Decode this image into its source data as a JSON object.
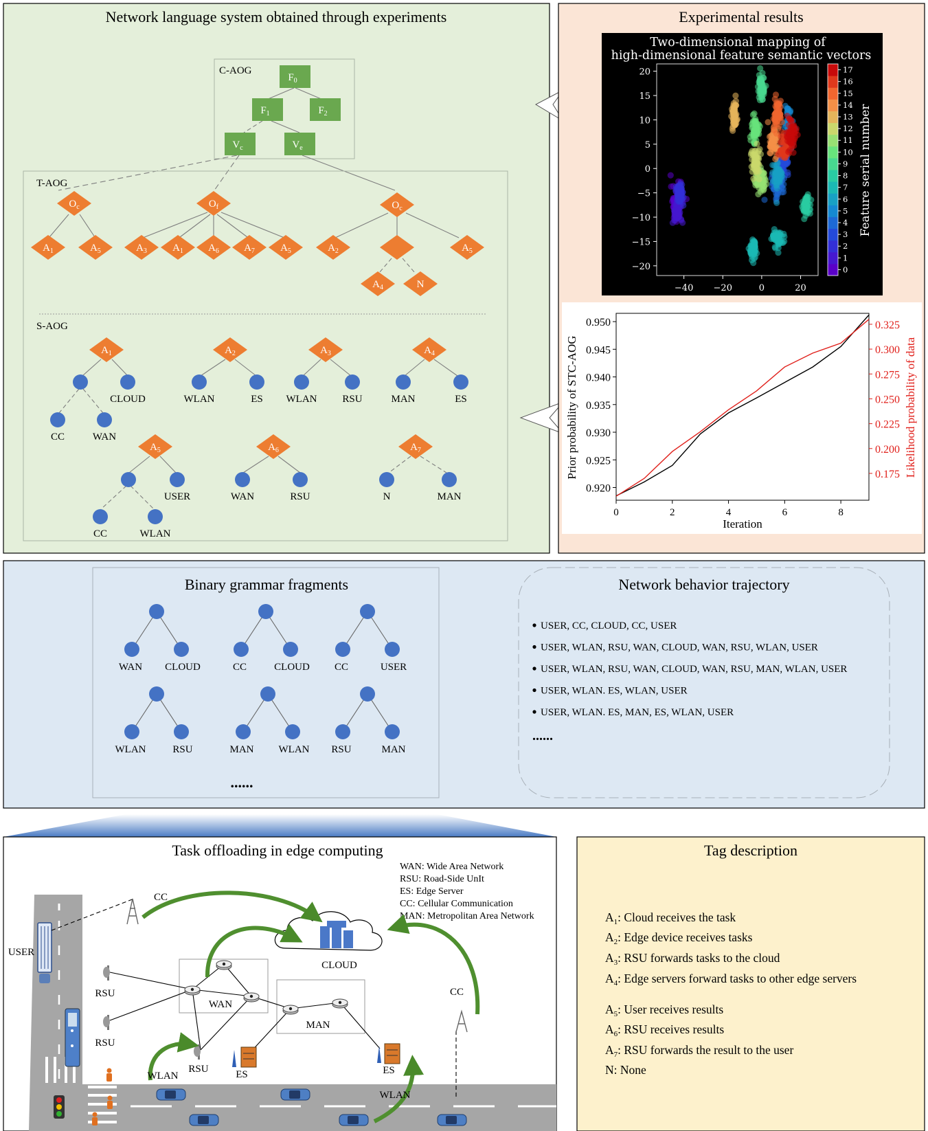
{
  "panels": {
    "network_language_title": "Network language system obtained through experiments",
    "experimental_title": "Experimental results",
    "binary_title": "Binary grammar fragments",
    "trajectory_title": "Network behavior trajectory",
    "task_title": "Task offloading in edge computing",
    "tag_title": "Tag description"
  },
  "aog": {
    "c_label": "C-AOG",
    "t_label": "T-AOG",
    "s_label": "S-AOG",
    "c_nodes": {
      "f0": "F",
      "f0_sub": "0",
      "f1": "F",
      "f1_sub": "1",
      "f2": "F",
      "f2_sub": "2",
      "vc": "V",
      "vc_sub": "c",
      "ve": "V",
      "ve_sub": "e"
    },
    "t_nodes": {
      "oc": "O",
      "oc_sub": "c",
      "of": "O",
      "of_sub": "f",
      "oe": "O",
      "oe_sub": "c"
    },
    "leaf_letter": "A",
    "none_letter": "N",
    "s_leaves": {
      "cloud": "CLOUD",
      "cc": "CC",
      "wan": "WAN",
      "wlan": "WLAN",
      "es": "ES",
      "rsu": "RSU",
      "man": "MAN",
      "user": "USER",
      "n": "N"
    }
  },
  "colors": {
    "green_panel": "#e4efda",
    "peach_panel": "#fbe5d6",
    "blue_panel": "#dde8f3",
    "yellow_panel": "#fdf1cc",
    "c_node": "#6aa84f",
    "t_node": "#ed7d31",
    "s_node": "#4472c4",
    "curve_black": "#000000",
    "curve_red": "#e0201b"
  },
  "scatter_chart": {
    "type": "scatter",
    "title_line1": "Two-dimensional mapping of",
    "title_line2": "high-dimensional feature semantic vectors",
    "colorbar_label": "Feature serial number",
    "xticks": [
      "−40",
      "−20",
      "0",
      "20"
    ],
    "yticks": [
      "20",
      "15",
      "10",
      "5",
      "0",
      "−5",
      "−10",
      "−15",
      "−20"
    ],
    "cticks": [
      "17",
      "16",
      "15",
      "14",
      "13",
      "12",
      "11",
      "10",
      "9",
      "8",
      "7",
      "6",
      "5",
      "4",
      "3",
      "2",
      "1",
      "0"
    ],
    "xlim": [
      -54,
      29
    ],
    "ylim": [
      -22,
      21.5
    ],
    "clusters": [
      {
        "label": 0,
        "x": -44,
        "y": -7,
        "sx": 2.5,
        "sy": 3.5
      },
      {
        "label": 1,
        "x": -43.5,
        "y": -9,
        "sx": 2.2,
        "sy": 2.6
      },
      {
        "label": 2,
        "x": -42,
        "y": -5,
        "sx": 1.8,
        "sy": 2
      },
      {
        "label": 3,
        "x": 11,
        "y": 1.5,
        "sx": 2.5,
        "sy": 2.2
      },
      {
        "label": 4,
        "x": 8.5,
        "y": -3.5,
        "sx": 3,
        "sy": 2.2
      },
      {
        "label": 5,
        "x": 14,
        "y": 8.5,
        "sx": 1.8,
        "sy": 3.5
      },
      {
        "label": 6,
        "x": 8,
        "y": -1.5,
        "sx": 2.5,
        "sy": 2.5
      },
      {
        "label": 7,
        "x": 8.5,
        "y": -14.5,
        "sx": 2.8,
        "sy": 1.6
      },
      {
        "label": 7,
        "x": -4.5,
        "y": -16.5,
        "sx": 1.6,
        "sy": 2.2
      },
      {
        "label": 8,
        "x": 23,
        "y": -7.5,
        "sx": 1.6,
        "sy": 2
      },
      {
        "label": 9,
        "x": 0,
        "y": 17,
        "sx": 1.5,
        "sy": 2.3
      },
      {
        "label": 10,
        "x": -3.5,
        "y": 8,
        "sx": 1.8,
        "sy": 2.5
      },
      {
        "label": 11,
        "x": -1,
        "y": -2.5,
        "sx": 2.5,
        "sy": 2.5
      },
      {
        "label": 12,
        "x": -3,
        "y": 1.5,
        "sx": 2,
        "sy": 2.5
      },
      {
        "label": 13,
        "x": -14,
        "y": 11,
        "sx": 1.3,
        "sy": 2.5
      },
      {
        "label": 14,
        "x": 6,
        "y": 5.5,
        "sx": 2.5,
        "sy": 3
      },
      {
        "label": 15,
        "x": 8,
        "y": 11,
        "sx": 2,
        "sy": 2.5
      },
      {
        "label": 16,
        "x": 12,
        "y": 4.5,
        "sx": 2.2,
        "sy": 2.5
      },
      {
        "label": 17,
        "x": 15,
        "y": 7,
        "sx": 2.5,
        "sy": 3
      }
    ]
  },
  "line_chart": {
    "type": "line",
    "xlabel": "Iteration",
    "ylabel_left": "Prior probability of STC-AOG",
    "ylabel_right": "Likelihood probability of data",
    "xlim": [
      0,
      9
    ],
    "ylim_left": [
      0.9177,
      0.9515
    ],
    "ylim_right": [
      0.148,
      0.336
    ],
    "xticks": [
      "0",
      "2",
      "4",
      "6",
      "8"
    ],
    "yticks_left": [
      "0.950",
      "0.945",
      "0.940",
      "0.935",
      "0.930",
      "0.925",
      "0.920"
    ],
    "yticks_right": [
      "0.325",
      "0.300",
      "0.275",
      "0.250",
      "0.225",
      "0.200",
      "0.175"
    ],
    "series": [
      {
        "axis": "left",
        "x": [
          0,
          1,
          2,
          3,
          4,
          5,
          6,
          7,
          8,
          9
        ],
        "values": [
          0.9185,
          0.921,
          0.924,
          0.9297,
          0.9335,
          0.9362,
          0.939,
          0.9418,
          0.9455,
          0.9512
        ]
      },
      {
        "axis": "right",
        "x": [
          0,
          1,
          2,
          3,
          4,
          5,
          6,
          7,
          8,
          9
        ],
        "values": [
          0.152,
          0.17,
          0.197,
          0.217,
          0.239,
          0.258,
          0.282,
          0.296,
          0.306,
          0.33
        ]
      }
    ]
  },
  "binary_fragments": {
    "pairs": [
      [
        "WAN",
        "CLOUD"
      ],
      [
        "CC",
        "CLOUD"
      ],
      [
        "CC",
        "USER"
      ],
      [
        "WLAN",
        "RSU"
      ],
      [
        "MAN",
        "WLAN"
      ],
      [
        "RSU",
        "MAN"
      ]
    ],
    "ellipsis": "......"
  },
  "trajectories": {
    "items": [
      "USER, CC, CLOUD, CC, USER",
      "USER, WLAN, RSU, WAN, CLOUD, WAN, RSU, WLAN, USER",
      "USER, WLAN, RSU, WAN, CLOUD, WAN, RSU, MAN, WLAN, USER",
      "USER, WLAN. ES, WLAN, USER",
      "USER, WLAN. ES, MAN, ES, WLAN, USER"
    ],
    "ellipsis": "......"
  },
  "legend": {
    "items": [
      "WAN: Wide Area Network",
      "RSU: Road-Side UnIt",
      "ES: Edge Server",
      "CC: Cellular Communication",
      "MAN: Metropolitan Area Network"
    ]
  },
  "task_diagram": {
    "cc1": "CC",
    "cc2": "CC",
    "user": "USER",
    "cloud": "CLOUD",
    "rsu1": "RSU",
    "rsu2": "RSU",
    "rsu3": "RSU",
    "wan": "WAN",
    "man": "MAN",
    "es1": "ES",
    "es2": "ES",
    "wlan1": "WLAN",
    "wlan2": "WLAN"
  },
  "tags": {
    "items": [
      {
        "letter": "A",
        "sub": "1",
        "text": ": Cloud receives the task"
      },
      {
        "letter": "A",
        "sub": "2",
        "text": ": Edge device receives tasks"
      },
      {
        "letter": "A",
        "sub": "3",
        "text": ": RSU forwards tasks to the cloud"
      },
      {
        "letter": "A",
        "sub": "4",
        "text": ": Edge servers forward tasks to other edge servers"
      },
      {
        "letter": "A",
        "sub": "5",
        "text": ": User receives results"
      },
      {
        "letter": "A",
        "sub": "6",
        "text": ": RSU receives results"
      },
      {
        "letter": "A",
        "sub": "7",
        "text": ": RSU forwards the result to the user"
      },
      {
        "letter": "N",
        "sub": "",
        "text": ": None"
      }
    ]
  }
}
